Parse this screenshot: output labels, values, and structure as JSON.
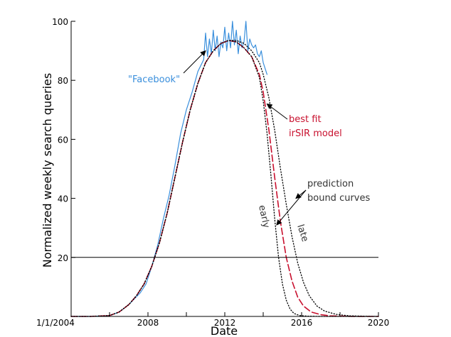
{
  "chart_data": {
    "type": "line",
    "title": "",
    "xlabel": "Date",
    "ylabel": "Normalized weekly search queries",
    "xlim": [
      2004.0,
      2020.0
    ],
    "ylim": [
      0,
      100
    ],
    "x_tick_values": [
      2004.0,
      2008.0,
      2012.0,
      2016.0,
      2020.0
    ],
    "x_tick_labels": [
      "1/1/2004",
      "2008",
      "2012",
      "2016",
      "2020"
    ],
    "x_minor_ticks": [
      2006.0,
      2010.0,
      2014.0,
      2018.0
    ],
    "y_tick_values": [
      20,
      40,
      60,
      80,
      100
    ],
    "y_tick_labels": [
      "20",
      "40",
      "60",
      "80",
      "100"
    ],
    "reference_line_y": 20,
    "grid": false,
    "legend": "none",
    "series": [
      {
        "name": "\"Facebook\"",
        "style": "solid",
        "color": "#3a8fdc",
        "x": [
          2004.0,
          2005.0,
          2006.0,
          2006.5,
          2007.0,
          2007.3,
          2007.6,
          2007.9,
          2008.2,
          2008.5,
          2008.8,
          2009.1,
          2009.4,
          2009.7,
          2010.0,
          2010.3,
          2010.6,
          2010.9,
          2011.0,
          2011.1,
          2011.2,
          2011.3,
          2011.4,
          2011.5,
          2011.6,
          2011.7,
          2011.8,
          2011.9,
          2012.0,
          2012.1,
          2012.2,
          2012.3,
          2012.4,
          2012.5,
          2012.6,
          2012.7,
          2012.8,
          2012.9,
          2013.0,
          2013.1,
          2013.2,
          2013.3,
          2013.4,
          2013.5,
          2013.6,
          2013.7,
          2013.8,
          2013.9,
          2014.0,
          2014.1,
          2014.2
        ],
        "y": [
          0,
          0,
          0.3,
          1.5,
          4,
          6,
          8,
          11,
          17,
          24,
          33,
          41,
          51,
          62,
          70,
          76,
          83,
          87,
          96,
          88,
          94,
          89,
          97,
          90,
          95,
          88,
          93,
          91,
          98,
          90,
          96,
          91,
          100,
          92,
          97,
          89,
          95,
          91,
          93,
          100,
          90,
          94,
          92,
          91,
          92,
          89,
          88,
          90,
          86,
          84,
          82
        ]
      },
      {
        "name": "best fit irSIR model",
        "style": "dashed",
        "color": "#c8102e",
        "x": [
          2004.0,
          2005.0,
          2006.0,
          2006.5,
          2007.0,
          2007.4,
          2007.8,
          2008.2,
          2008.6,
          2009.0,
          2009.4,
          2009.8,
          2010.2,
          2010.6,
          2011.0,
          2011.4,
          2011.8,
          2012.2,
          2012.6,
          2013.0,
          2013.4,
          2013.8,
          2014.0,
          2014.3,
          2014.6,
          2014.9,
          2015.2,
          2015.5,
          2015.8,
          2016.1,
          2016.5,
          2017.0,
          2017.5,
          2018.0,
          2019.0,
          2020.0
        ],
        "y": [
          0,
          0,
          0.3,
          1.5,
          4,
          7,
          11,
          17,
          25,
          35,
          47,
          59,
          70,
          79,
          86,
          90,
          92.5,
          93.5,
          93,
          91,
          88,
          82,
          76,
          63,
          47,
          32,
          20,
          12,
          6.5,
          3.5,
          1.5,
          0.6,
          0.2,
          0.1,
          0,
          0
        ]
      },
      {
        "name": "prediction bound curves (early)",
        "style": "dotted",
        "color": "#000000",
        "x": [
          2004.0,
          2005.0,
          2006.0,
          2006.5,
          2007.0,
          2007.4,
          2007.8,
          2008.2,
          2008.6,
          2009.0,
          2009.4,
          2009.8,
          2010.2,
          2010.6,
          2011.0,
          2011.4,
          2011.8,
          2012.2,
          2012.6,
          2013.0,
          2013.4,
          2013.8,
          2014.0,
          2014.2,
          2014.4,
          2014.6,
          2014.8,
          2015.0,
          2015.2,
          2015.4,
          2015.6,
          2015.9,
          2016.3,
          2017.0,
          2018.0,
          2020.0
        ],
        "y": [
          0,
          0,
          0.3,
          1.5,
          4,
          7,
          11,
          17,
          25,
          35,
          47,
          59,
          70,
          79,
          86,
          90,
          92.5,
          93.5,
          93,
          91,
          88,
          81,
          73,
          62,
          48,
          33,
          20,
          11,
          5.5,
          2.5,
          1,
          0.3,
          0.1,
          0,
          0,
          0
        ]
      },
      {
        "name": "prediction bound curves (late)",
        "style": "dotted",
        "color": "#000000",
        "x": [
          2004.0,
          2005.0,
          2006.0,
          2006.5,
          2007.0,
          2007.4,
          2007.8,
          2008.2,
          2008.6,
          2009.0,
          2009.4,
          2009.8,
          2010.2,
          2010.6,
          2011.0,
          2011.4,
          2011.8,
          2012.2,
          2012.6,
          2013.0,
          2013.4,
          2013.8,
          2014.0,
          2014.3,
          2014.6,
          2014.9,
          2015.2,
          2015.5,
          2015.8,
          2016.1,
          2016.4,
          2016.8,
          2017.2,
          2017.8,
          2018.5,
          2019.5,
          2020.0
        ],
        "y": [
          0,
          0,
          0.3,
          1.5,
          4,
          7,
          11,
          17,
          25,
          35,
          47,
          59,
          70,
          79,
          86,
          90,
          92.5,
          93.5,
          93.5,
          92.5,
          90,
          86,
          82,
          74,
          63,
          50,
          38,
          27,
          18,
          11.5,
          7,
          3.5,
          1.8,
          0.7,
          0.2,
          0.05,
          0
        ]
      }
    ],
    "annotations": [
      {
        "text": "\"Facebook\"",
        "color": "#3a8fdc",
        "points_to": [
          2011.0,
          90
        ]
      },
      {
        "text": "best fit",
        "color": "#c8102e",
        "points_to": [
          2014.2,
          72
        ]
      },
      {
        "text": "irSIR model",
        "color": "#c8102e"
      },
      {
        "text": "prediction",
        "color": "#333333",
        "points_to": [
          2014.7,
          31
        ]
      },
      {
        "text": "bound curves",
        "color": "#333333",
        "points_to": [
          2015.7,
          40
        ]
      },
      {
        "text": "early",
        "color": "#333333"
      },
      {
        "text": "late",
        "color": "#333333"
      }
    ]
  }
}
